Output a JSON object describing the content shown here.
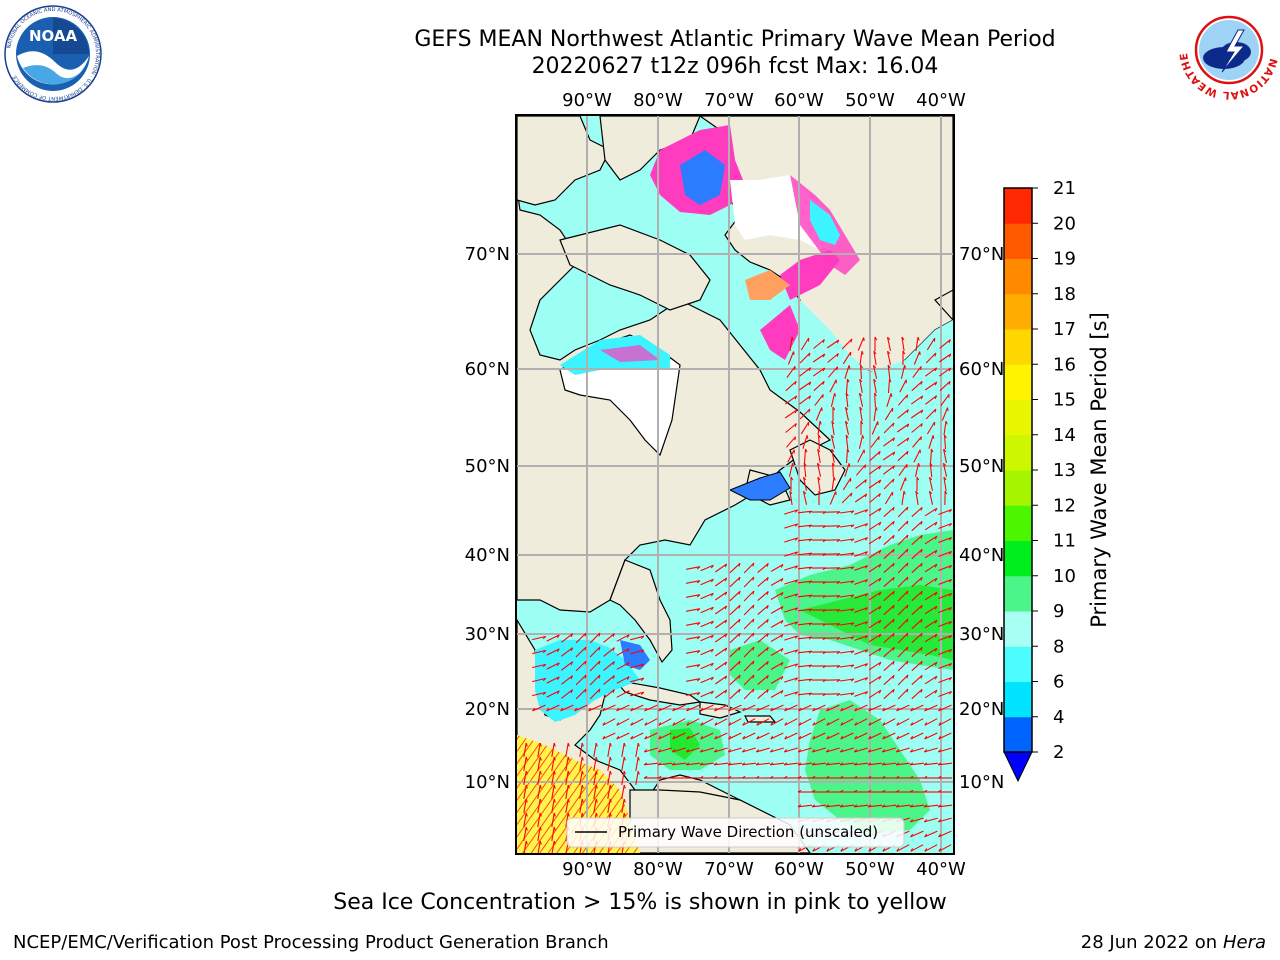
{
  "header": {
    "title_line1": "GEFS MEAN Northwest Atlantic Primary Wave Mean Period",
    "title_line2": "20220627 t12z 096h fcst    Max: 16.04"
  },
  "logos": {
    "left": {
      "icon": "noaa-logo",
      "text": "NOAA",
      "ring_text": "NATIONAL OCEANIC AND ATMOSPHERIC ADMINISTRATION · U.S. DEPARTMENT OF COMMERCE"
    },
    "right": {
      "icon": "nws-logo",
      "ring_text": "NATIONAL WEATHER SERVICE"
    }
  },
  "map": {
    "longitude_labels": [
      "90°W",
      "80°W",
      "70°W",
      "60°W",
      "50°W",
      "40°W"
    ],
    "latitude_labels": [
      "70°N",
      "60°N",
      "50°N",
      "40°N",
      "30°N",
      "20°N",
      "10°N"
    ],
    "legend_label": "Primary Wave Direction (unscaled)",
    "colors": {
      "land": "#efecdc",
      "ice_white": "#ffffff",
      "ice_pink": "#ff3bbf",
      "ice_orange": "#ffa060",
      "water_light": "#9dfff4",
      "water_cyan": "#3cf4ff",
      "water_blue": "#2b7cff",
      "green_9_10": "#4cf58a",
      "green_10_11": "#22e830",
      "yellow_high": "#fff44a",
      "arrow": "#ff0000",
      "grid": "#b0b0b0"
    }
  },
  "colorbar": {
    "label": "Primary Wave Mean Period [s]",
    "tick_labels": [
      "2",
      "4",
      "6",
      "8",
      "9",
      "10",
      "11",
      "12",
      "13",
      "14",
      "15",
      "16",
      "17",
      "18",
      "19",
      "20",
      "21"
    ],
    "bands": [
      "#0064ff",
      "#00e4ff",
      "#4cfcff",
      "#a8fff4",
      "#4cf58a",
      "#00ee1c",
      "#4cf500",
      "#a6f500",
      "#ccf700",
      "#e8f700",
      "#fff400",
      "#ffd700",
      "#ffad00",
      "#ff8a00",
      "#ff5a00",
      "#ff2800"
    ],
    "under_color": "#0000ff"
  },
  "footer": {
    "subtitle": "Sea Ice Concentration > 15% is shown in pink to yellow",
    "credit": "NCEP/EMC/Verification Post Processing Product Generation Branch",
    "date": "28 Jun 2022 on",
    "host": "Hera"
  }
}
